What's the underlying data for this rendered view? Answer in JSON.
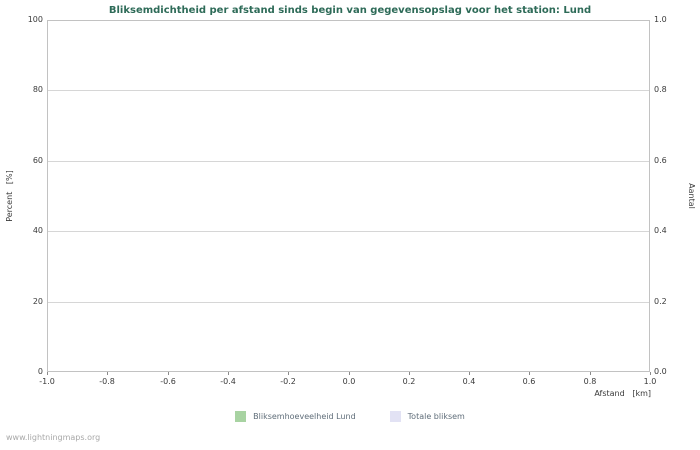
{
  "chart_data": {
    "type": "bar",
    "title": "Bliksemdichtheid per afstand sinds begin van gegevensopslag voor het station: Lund",
    "xlabel": "Afstand   [km]",
    "ylabel_left": "Percent   [%]",
    "ylabel_right": "Aantal",
    "xlim": [
      -1.0,
      1.0
    ],
    "ylim_left": [
      0,
      100
    ],
    "ylim_right": [
      0.0,
      1.0
    ],
    "x_tick_labels": [
      "-1.0",
      "-0.8",
      "-0.6",
      "-0.4",
      "-0.2",
      "0.0",
      "0.2",
      "0.4",
      "0.6",
      "0.8",
      "1.0"
    ],
    "y_left_tick_labels": [
      "0",
      "20",
      "40",
      "60",
      "80",
      "100"
    ],
    "y_right_tick_labels": [
      "0.0",
      "0.2",
      "0.4",
      "0.6",
      "0.8",
      "1.0"
    ],
    "grid": true,
    "legend_position": "bottom",
    "series": [
      {
        "name": "Bliksemhoeveelheid Lund",
        "color": "#a8d3a2",
        "values": []
      },
      {
        "name": "Totale bliksem",
        "color": "#e2e2f4",
        "values": []
      }
    ]
  },
  "footer": {
    "watermark": "www.lightningmaps.org"
  },
  "colors": {
    "title": "#2e6b58",
    "grid": "#d6d6d6",
    "axis_text": "#3a3a3a",
    "tick_mark": "#8a8a8a",
    "legend_text": "#5f6d79",
    "watermark": "#a8a8a8"
  }
}
